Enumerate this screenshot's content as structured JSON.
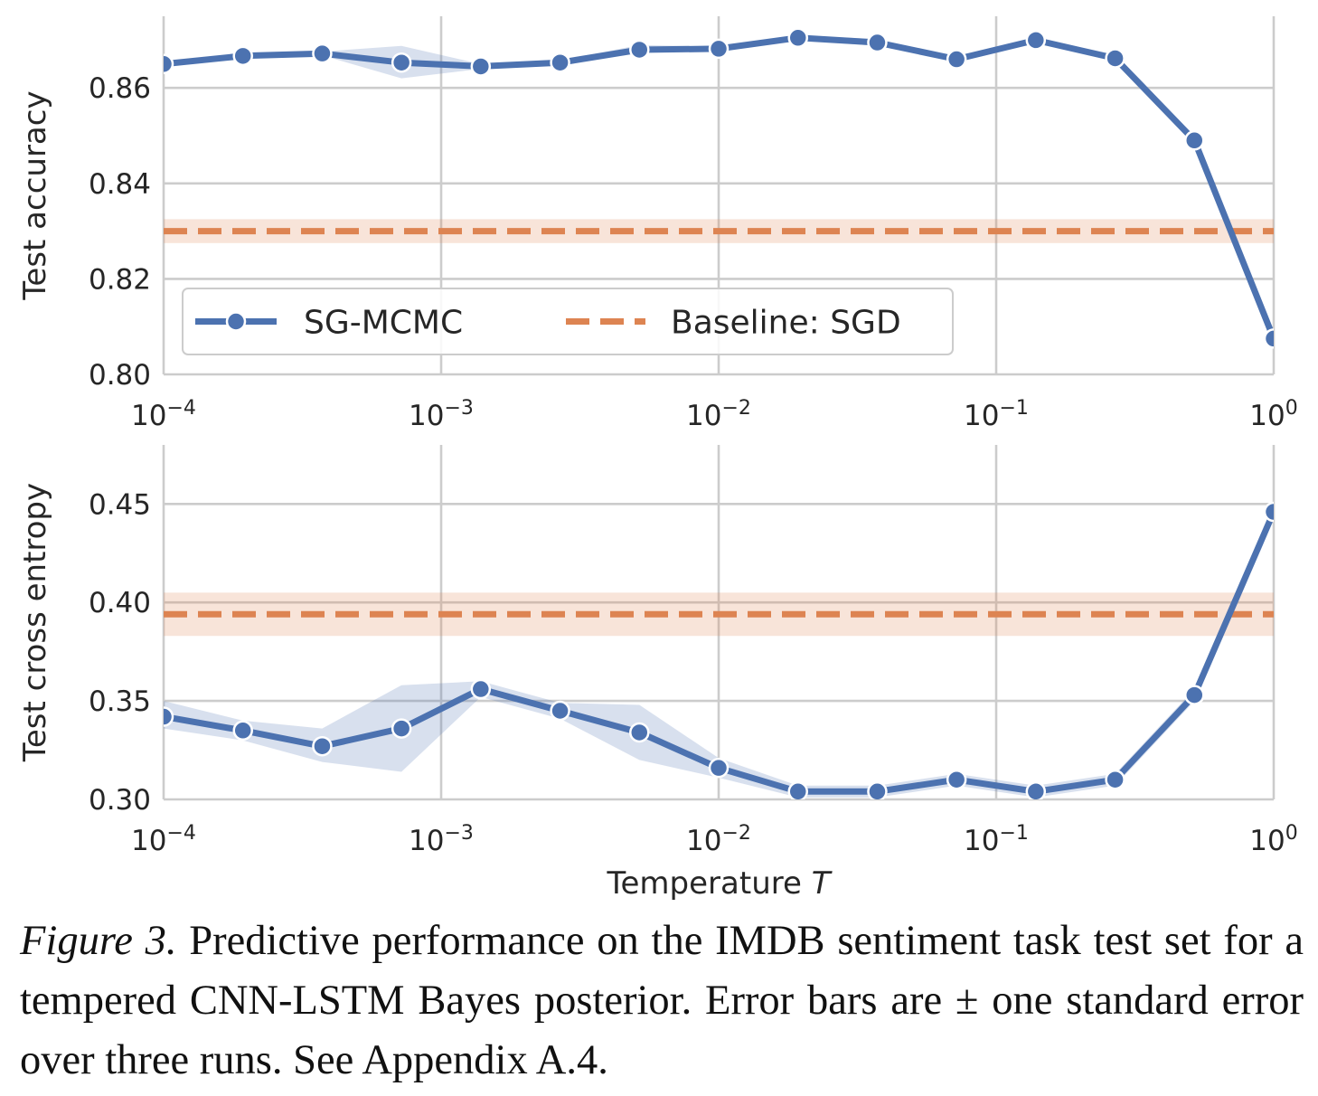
{
  "chart_data": [
    {
      "type": "line",
      "ylabel": "Test accuracy",
      "xlabel": "",
      "xscale": "log",
      "xlim": [
        0.0001,
        1
      ],
      "ylim": [
        0.8,
        0.875
      ],
      "xticks": [
        0.0001,
        0.001,
        0.01,
        0.1,
        1
      ],
      "xtick_labels": [
        {
          "base": "10",
          "exp": "−4"
        },
        {
          "base": "10",
          "exp": "−3"
        },
        {
          "base": "10",
          "exp": "−2"
        },
        {
          "base": "10",
          "exp": "−1"
        },
        {
          "base": "10",
          "exp": "0"
        }
      ],
      "yticks": [
        0.8,
        0.82,
        0.84,
        0.86
      ],
      "ytick_labels": [
        "0.80",
        "0.82",
        "0.84",
        "0.86"
      ],
      "grid": true,
      "legend": {
        "placement": "lower-left",
        "entries": [
          "SG-MCMC",
          "Baseline: SGD"
        ]
      },
      "series": [
        {
          "name": "SG-MCMC",
          "color": "#4c72b0",
          "style": "solid-markers",
          "x": [
            0.0001,
            0.0001931,
            0.0003728,
            0.0007197,
            0.001389,
            0.002683,
            0.005179,
            0.01,
            0.01931,
            0.03728,
            0.07197,
            0.1389,
            0.2683,
            0.5179,
            1.0
          ],
          "y": [
            0.865,
            0.8667,
            0.8672,
            0.8653,
            0.8645,
            0.8653,
            0.868,
            0.8682,
            0.8705,
            0.8695,
            0.866,
            0.87,
            0.8662,
            0.849,
            0.8075
          ],
          "err_lower": [
            0.8647,
            0.8663,
            0.8668,
            0.862,
            0.864,
            0.8649,
            0.8676,
            0.8678,
            0.87,
            0.8688,
            0.8655,
            0.8695,
            0.8656,
            0.8484,
            0.807
          ],
          "err_upper": [
            0.8653,
            0.8671,
            0.8676,
            0.8688,
            0.865,
            0.8657,
            0.869,
            0.8686,
            0.871,
            0.8702,
            0.8665,
            0.8705,
            0.867,
            0.8496,
            0.808
          ]
        },
        {
          "name": "Baseline: SGD",
          "color": "#dd8452",
          "style": "dashed",
          "y": 0.83,
          "band": [
            0.8275,
            0.8325
          ]
        }
      ]
    },
    {
      "type": "line",
      "ylabel": "Test cross entropy",
      "xlabel": "Temperature T",
      "xscale": "log",
      "xlim": [
        0.0001,
        1
      ],
      "ylim": [
        0.3,
        0.48
      ],
      "xticks": [
        0.0001,
        0.001,
        0.01,
        0.1,
        1
      ],
      "xtick_labels": [
        {
          "base": "10",
          "exp": "−4"
        },
        {
          "base": "10",
          "exp": "−3"
        },
        {
          "base": "10",
          "exp": "−2"
        },
        {
          "base": "10",
          "exp": "−1"
        },
        {
          "base": "10",
          "exp": "0"
        }
      ],
      "yticks": [
        0.3,
        0.35,
        0.4,
        0.45
      ],
      "ytick_labels": [
        "0.30",
        "0.35",
        "0.40",
        "0.45"
      ],
      "grid": true,
      "series": [
        {
          "name": "SG-MCMC",
          "color": "#4c72b0",
          "style": "solid-markers",
          "x": [
            0.0001,
            0.0001931,
            0.0003728,
            0.0007197,
            0.001389,
            0.002683,
            0.005179,
            0.01,
            0.01931,
            0.03728,
            0.07197,
            0.1389,
            0.2683,
            0.5179,
            1.0
          ],
          "y": [
            0.342,
            0.335,
            0.327,
            0.336,
            0.356,
            0.345,
            0.334,
            0.316,
            0.304,
            0.304,
            0.31,
            0.304,
            0.31,
            0.353,
            0.446
          ],
          "err_lower": [
            0.336,
            0.33,
            0.319,
            0.314,
            0.352,
            0.341,
            0.32,
            0.311,
            0.301,
            0.301,
            0.307,
            0.301,
            0.307,
            0.35,
            0.443
          ],
          "err_upper": [
            0.35,
            0.34,
            0.336,
            0.358,
            0.36,
            0.349,
            0.348,
            0.321,
            0.307,
            0.307,
            0.313,
            0.307,
            0.313,
            0.356,
            0.449
          ]
        },
        {
          "name": "Baseline: SGD",
          "color": "#dd8452",
          "style": "dashed",
          "y": 0.394,
          "band": [
            0.383,
            0.405
          ]
        }
      ]
    }
  ],
  "caption": {
    "label": "Figure 3.",
    "text": "Predictive performance on the IMDB sentiment task test set for a tempered CNN-LSTM Bayes posterior. Error bars are ± one standard error over three runs. See Appendix A.4."
  }
}
